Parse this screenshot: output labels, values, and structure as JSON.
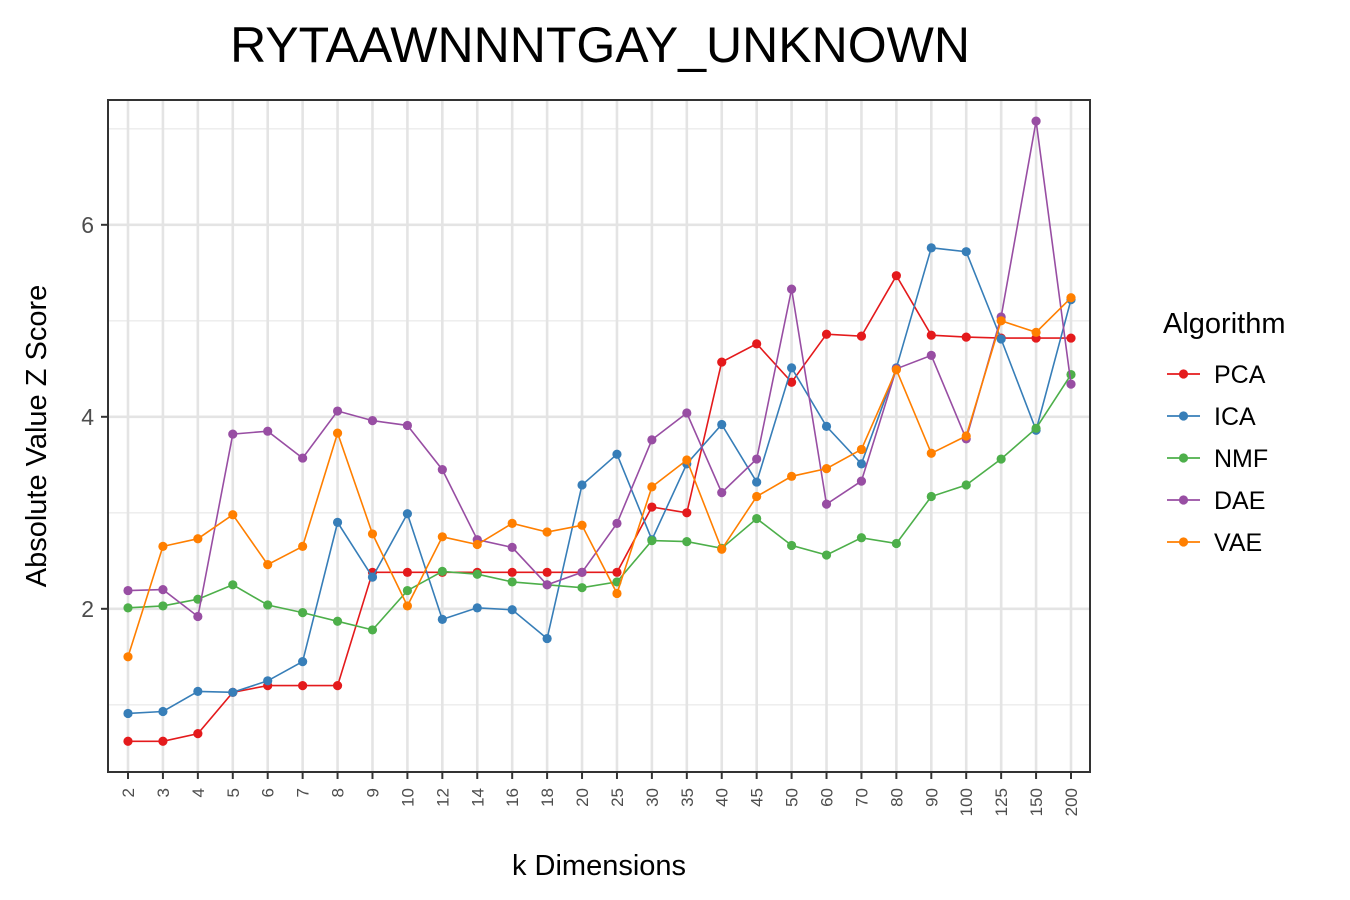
{
  "chart_data": {
    "type": "line",
    "title": "RYTAAWNNNTGAY_UNKNOWN",
    "xlabel": "k Dimensions",
    "ylabel": "Absolute Value Z Score",
    "categories": [
      "2",
      "3",
      "4",
      "5",
      "6",
      "7",
      "8",
      "9",
      "10",
      "12",
      "14",
      "16",
      "18",
      "20",
      "25",
      "30",
      "35",
      "40",
      "45",
      "50",
      "60",
      "70",
      "80",
      "90",
      "100",
      "125",
      "150",
      "200"
    ],
    "y_ticks": [
      2,
      4,
      6
    ],
    "ylim": [
      0.3,
      7.3
    ],
    "grid": true,
    "legend": {
      "title": "Algorithm",
      "placement": "right"
    },
    "series": [
      {
        "name": "PCA",
        "color": "#E41A1C",
        "values": [
          0.62,
          0.62,
          0.7,
          1.13,
          1.2,
          1.2,
          1.2,
          2.38,
          2.38,
          2.38,
          2.38,
          2.38,
          2.38,
          2.38,
          2.38,
          3.06,
          3.0,
          4.57,
          4.76,
          4.36,
          4.86,
          4.84,
          5.47,
          4.85,
          4.83,
          4.82,
          4.82,
          4.82
        ]
      },
      {
        "name": "ICA",
        "color": "#377EB8",
        "values": [
          0.91,
          0.93,
          1.14,
          1.13,
          1.25,
          1.45,
          2.9,
          2.33,
          2.99,
          1.89,
          2.01,
          1.99,
          1.69,
          3.29,
          3.61,
          2.72,
          3.51,
          3.92,
          3.32,
          4.51,
          3.9,
          3.51,
          4.51,
          5.76,
          5.72,
          4.81,
          3.86,
          5.22
        ]
      },
      {
        "name": "NMF",
        "color": "#4DAF4A",
        "values": [
          2.01,
          2.03,
          2.1,
          2.25,
          2.04,
          1.96,
          1.87,
          1.78,
          2.19,
          2.39,
          2.36,
          2.28,
          2.25,
          2.22,
          2.28,
          2.71,
          2.7,
          2.63,
          2.94,
          2.66,
          2.56,
          2.74,
          2.68,
          3.17,
          3.29,
          3.56,
          3.88,
          4.44
        ]
      },
      {
        "name": "DAE",
        "color": "#984EA3",
        "values": [
          2.19,
          2.2,
          1.92,
          3.82,
          3.85,
          3.57,
          4.06,
          3.96,
          3.91,
          3.45,
          2.72,
          2.64,
          2.25,
          2.38,
          2.89,
          3.76,
          4.04,
          3.21,
          3.56,
          5.33,
          3.09,
          3.33,
          4.5,
          4.64,
          3.77,
          5.04,
          7.08,
          4.34
        ]
      },
      {
        "name": "VAE",
        "color": "#FF7F00",
        "values": [
          1.5,
          2.65,
          2.73,
          2.98,
          2.46,
          2.65,
          3.83,
          2.78,
          2.03,
          2.75,
          2.67,
          2.89,
          2.8,
          2.87,
          2.16,
          3.27,
          3.55,
          2.62,
          3.17,
          3.38,
          3.46,
          3.66,
          4.49,
          3.62,
          3.8,
          5.0,
          4.88,
          5.24
        ]
      }
    ]
  }
}
